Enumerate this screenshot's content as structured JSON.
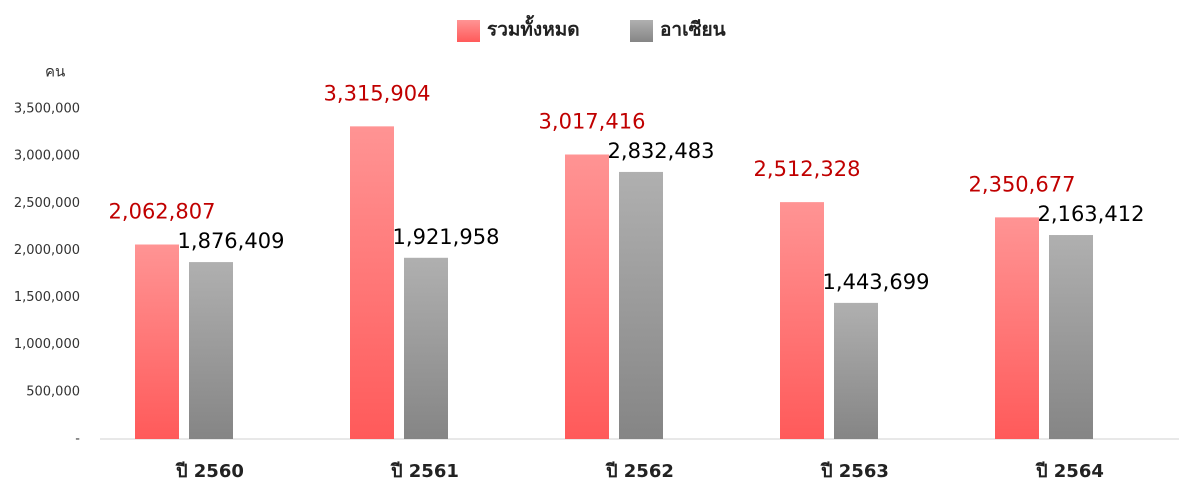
{
  "chart_data": {
    "type": "bar",
    "y_label": "คน",
    "categories": [
      "ปี 2560",
      "ปี 2561",
      "ปี 2562",
      "ปี 2563",
      "ปี 2564"
    ],
    "series": [
      {
        "name": "รวมทั้งหมด",
        "color": "#ff5a5a",
        "label_color": "#c00000",
        "values": [
          2062807,
          3315904,
          3017416,
          2512328,
          2350677
        ],
        "value_labels": [
          "2,062,807",
          "3,315,904",
          "3,017,416",
          "2,512,328",
          "2,350,677"
        ]
      },
      {
        "name": "อาเซียน",
        "color": "#858585",
        "label_color": "#000000",
        "values": [
          1876409,
          1921958,
          2832483,
          1443699,
          2163412
        ],
        "value_labels": [
          "1,876,409",
          "1,921,958",
          "2,832,483",
          "1,443,699",
          "2,163,412"
        ]
      }
    ],
    "ylim": [
      0,
      3500000
    ],
    "yticks": [
      {
        "value": 0,
        "label": "-"
      },
      {
        "value": 500000,
        "label": "500,000"
      },
      {
        "value": 1000000,
        "label": "1,000,000"
      },
      {
        "value": 1500000,
        "label": "1,500,000"
      },
      {
        "value": 2000000,
        "label": "2,000,000"
      },
      {
        "value": 2500000,
        "label": "2,500,000"
      },
      {
        "value": 3000000,
        "label": "3,000,000"
      },
      {
        "value": 3500000,
        "label": "3,500,000"
      }
    ],
    "grid": false,
    "legend": "top"
  }
}
